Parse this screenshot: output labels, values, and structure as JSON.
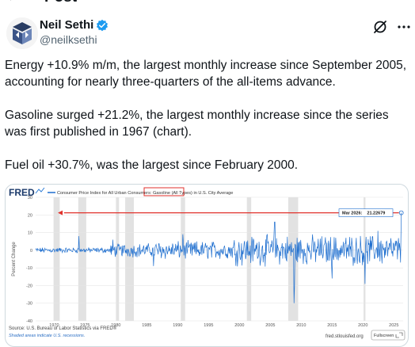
{
  "header": {
    "title": "Post"
  },
  "author": {
    "name": "Neil Sethi",
    "handle": "@neilksethi"
  },
  "tweet": {
    "paragraphs": [
      "Energy +10.9% m/m, the largest monthly increase since September 2005, accounting for nearly three-quarters of the all-items advance.",
      "Gasoline surged +21.2%, the largest monthly increase since the series was first published in 1967 (chart).",
      "Fuel oil +30.7%, was the largest since February 2000."
    ]
  },
  "chart_data": {
    "type": "line",
    "brand": "FRED",
    "title_before": "Consumer Price Index for All Urban Consumers: ",
    "title_highlight": "Gasoline (All Types)",
    "title_after": " in U.S. City Average",
    "ylabel": "Percent Change",
    "ylim": [
      -40,
      30
    ],
    "y_ticks": [
      30,
      20,
      10,
      0,
      -10,
      -20,
      -30,
      -40
    ],
    "xlim": [
      1967,
      2026.5
    ],
    "x_ticks": [
      1970,
      1975,
      1980,
      1985,
      1990,
      1995,
      2000,
      2005,
      2010,
      2015,
      2020,
      2025
    ],
    "callout": {
      "label": "Mar 2026:",
      "value": "21.22679",
      "x": 2026.2,
      "y": 21.2
    },
    "recessions": [
      [
        1969.9,
        1970.9
      ],
      [
        1973.9,
        1975.2
      ],
      [
        1980.0,
        1980.5
      ],
      [
        1981.5,
        1982.9
      ],
      [
        1990.5,
        1991.2
      ],
      [
        2001.2,
        2001.9
      ],
      [
        2007.9,
        2009.5
      ],
      [
        2020.1,
        2020.4
      ]
    ],
    "series_color": "#1f6fcf",
    "highlight_color": "#e0322c",
    "source": "Source: U.S. Bureau of Labor Statistics via FRED®",
    "note": "Shaded areas indicate U.S. recessions.",
    "url": "fred.stlouisfed.org",
    "fullscreen_label": "Fullscreen"
  }
}
